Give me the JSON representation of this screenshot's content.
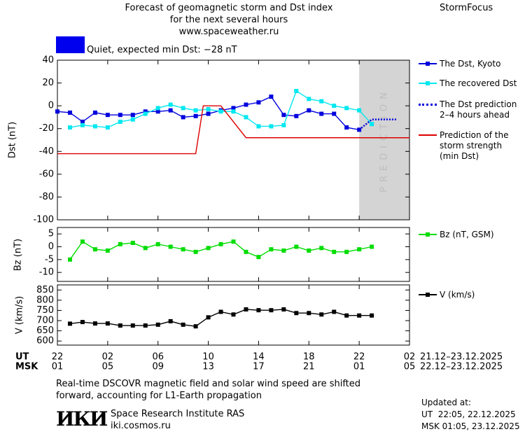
{
  "header": {
    "title": "Forecast of geomagnetic storm and Dst index\nfor the next several hours",
    "url": "www.spaceweather.ru",
    "brand": "StormFocus",
    "status": "Quiet, expected min Dst: −28 nT",
    "status_color": "#0000ee"
  },
  "chart_data": [
    {
      "type": "line",
      "ylabel": "Dst (nT)",
      "xlim": [
        0,
        28
      ],
      "ylim": [
        -100,
        40
      ],
      "yticks": [
        40,
        20,
        0,
        -20,
        -40,
        -60,
        -80,
        -100
      ],
      "prediction_span": [
        24,
        28
      ],
      "prediction_label": "PREDICTION",
      "series": [
        {
          "name": "The Dst, Kyoto",
          "color": "#0000dd",
          "marker": "square",
          "x": [
            0,
            1,
            2,
            3,
            4,
            5,
            6,
            7,
            8,
            9,
            10,
            11,
            12,
            13,
            14,
            15,
            16,
            17,
            18,
            19,
            20,
            21,
            22,
            23,
            24
          ],
          "values": [
            -5,
            -6,
            -14,
            -6,
            -8,
            -8,
            -8,
            -5,
            -5,
            -4,
            -10,
            -9,
            -7,
            -4,
            -2,
            1,
            3,
            8,
            -8,
            -9,
            -4,
            -7,
            -7,
            -19,
            -21
          ]
        },
        {
          "name": "The recovered Dst",
          "color": "#00e8f0",
          "marker": "square",
          "x": [
            1,
            2,
            3,
            4,
            5,
            6,
            7,
            8,
            9,
            10,
            11,
            12,
            13,
            14,
            15,
            16,
            17,
            18,
            19,
            20,
            21,
            22,
            23,
            24,
            25
          ],
          "values": [
            -19,
            -17,
            -18,
            -19,
            -14,
            -12,
            -7,
            -2,
            1,
            -2,
            -4,
            -3,
            -5,
            -5,
            -10,
            -18,
            -18,
            -17,
            13,
            6,
            4,
            0,
            -2,
            -4,
            -16
          ]
        },
        {
          "name": "The Dst prediction\n2–4 hours ahead",
          "color": "#0000dd",
          "dash": true,
          "x": [
            24,
            25,
            27
          ],
          "values": [
            -21,
            -12,
            -12
          ]
        },
        {
          "name": "Prediction of the\nstorm strength\n(min Dst)",
          "color": "#dd0000",
          "x": [
            0,
            11,
            11.6,
            13,
            15,
            28
          ],
          "values": [
            -42,
            -42,
            0,
            0,
            -28,
            -28
          ]
        }
      ]
    },
    {
      "type": "line",
      "ylabel": "Bz (nT)",
      "xlim": [
        0,
        28
      ],
      "ylim": [
        -13.5,
        7.5
      ],
      "yticks": [
        5,
        0,
        -5,
        -10
      ],
      "series": [
        {
          "name": "Bz (nT, GSM)",
          "color": "#00dd00",
          "marker": "square",
          "x": [
            1,
            2,
            3,
            4,
            5,
            6,
            7,
            8,
            9,
            10,
            11,
            12,
            13,
            14,
            15,
            16,
            17,
            18,
            19,
            20,
            21,
            22,
            23,
            24,
            25
          ],
          "values": [
            -5,
            2,
            -1,
            -1.5,
            1,
            1.5,
            -0.5,
            1,
            0,
            -1,
            -2,
            -0.5,
            1,
            2,
            -2,
            -4,
            -1,
            -1.5,
            0,
            -1.5,
            -0.5,
            -2,
            -2,
            -1,
            0
          ]
        }
      ]
    },
    {
      "type": "line",
      "ylabel": "V (km/s)",
      "xlim": [
        0,
        28
      ],
      "ylim": [
        580,
        875
      ],
      "yticks": [
        850,
        800,
        750,
        700,
        650,
        600
      ],
      "xlabel": "UT",
      "x2label": "MSK",
      "xrange_label": "21.12–23.12.2025",
      "x2range_label": "22.12–23.12.2025",
      "xticks": [
        {
          "value": 0,
          "label": "22"
        },
        {
          "value": 4,
          "label": "02"
        },
        {
          "value": 8,
          "label": "06"
        },
        {
          "value": 12,
          "label": "10"
        },
        {
          "value": 16,
          "label": "14"
        },
        {
          "value": 20,
          "label": "18"
        },
        {
          "value": 24,
          "label": "22"
        },
        {
          "value": 28,
          "label": "02"
        }
      ],
      "x2ticks": [
        {
          "value": 0,
          "label": "01"
        },
        {
          "value": 4,
          "label": "05"
        },
        {
          "value": 8,
          "label": "09"
        },
        {
          "value": 12,
          "label": "13"
        },
        {
          "value": 16,
          "label": "17"
        },
        {
          "value": 20,
          "label": "21"
        },
        {
          "value": 24,
          "label": "01"
        },
        {
          "value": 28,
          "label": "05"
        }
      ],
      "series": [
        {
          "name": "V (km/s)",
          "color": "#000000",
          "marker": "square",
          "x": [
            1,
            2,
            3,
            4,
            5,
            6,
            7,
            8,
            9,
            10,
            11,
            12,
            13,
            14,
            15,
            16,
            17,
            18,
            19,
            20,
            21,
            22,
            23,
            24,
            25
          ],
          "values": [
            685,
            693,
            686,
            686,
            676,
            676,
            676,
            680,
            697,
            680,
            672,
            716,
            743,
            730,
            755,
            751,
            751,
            755,
            737,
            737,
            730,
            743,
            725,
            725,
            725
          ]
        }
      ]
    }
  ],
  "footer": {
    "note": "Real-time DSCOVR magnetic field and solar wind speed are shifted\nforward, accounting for L1-Earth propagation",
    "logo": "ИКИ",
    "institute": "Space Research Institute RAS",
    "site": "iki.cosmos.ru",
    "updated": [
      "Updated at:",
      "UT  22:05, 22.12.2025",
      "MSK 01:05, 23.12.2025"
    ]
  }
}
